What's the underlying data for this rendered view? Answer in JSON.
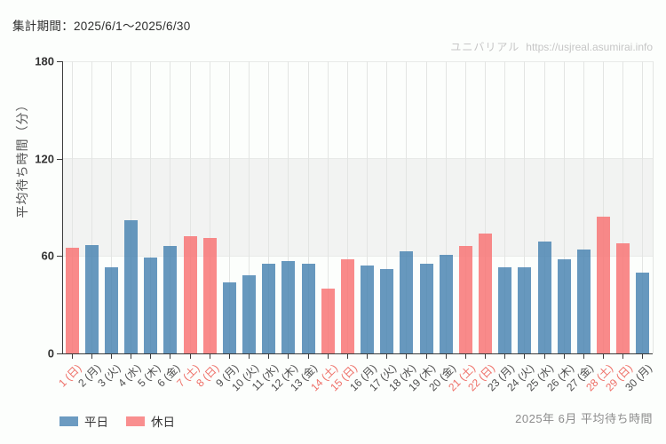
{
  "header": {
    "period": "集計期間：2025/6/1～2025/6/30"
  },
  "watermark": {
    "brand": "ユニバリアル",
    "url": "https://usjreal.asumirai.info"
  },
  "footer": {
    "caption": "2025年 6月 平均待ち時間"
  },
  "chart_data": {
    "type": "bar",
    "title": "2025年 6月 平均待ち時間",
    "ylabel": "平均待ち時間（分）",
    "ylim": [
      0,
      180
    ],
    "yticks": [
      0,
      60,
      120,
      180
    ],
    "shaded_band": [
      60,
      120
    ],
    "grid": "vertical line at each day center; horizontal lines at 60/120/180",
    "legend_position": "bottom-left",
    "categories": [
      "1 (日)",
      "2 (月)",
      "3 (火)",
      "4 (水)",
      "5 (木)",
      "6 (金)",
      "7 (土)",
      "8 (日)",
      "9 (月)",
      "10 (火)",
      "11 (水)",
      "12 (木)",
      "13 (金)",
      "14 (土)",
      "15 (日)",
      "16 (月)",
      "17 (火)",
      "18 (水)",
      "19 (木)",
      "20 (金)",
      "21 (土)",
      "22 (日)",
      "23 (月)",
      "24 (火)",
      "25 (水)",
      "26 (木)",
      "27 (金)",
      "28 (土)",
      "29 (日)",
      "30 (月)"
    ],
    "values": [
      65,
      67,
      53,
      82,
      59,
      66,
      72,
      71,
      44,
      48,
      55,
      57,
      55,
      40,
      58,
      54,
      52,
      63,
      55,
      61,
      66,
      74,
      53,
      53,
      69,
      58,
      64,
      84,
      68,
      50
    ],
    "holiday_days": [
      1,
      7,
      8,
      14,
      15,
      21,
      22,
      28,
      29
    ],
    "colors": {
      "weekday_bar": "rgba(70,129,176,0.82)",
      "holiday_bar": "rgba(248,116,116,0.84)",
      "weekday_swatch": "#6c9bc1",
      "holiday_swatch": "#f98f8f",
      "weekday_label": "#4d4d4d",
      "holiday_label": "#ee6f67"
    },
    "legend": [
      {
        "label": "平日",
        "type": "weekday"
      },
      {
        "label": "休日",
        "type": "holiday"
      }
    ]
  }
}
